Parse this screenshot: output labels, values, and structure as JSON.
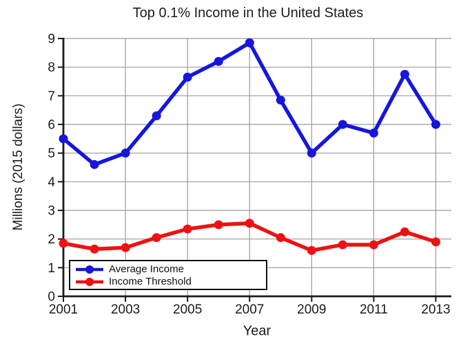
{
  "title": "Top 0.1% Income in the United States",
  "colors": {
    "average_income": "#1616dd",
    "income_threshold": "#ee1111",
    "grid": "#9a9a9a",
    "axis": "#1a1a1a",
    "background": "#ffffff"
  },
  "chart_data": {
    "type": "line",
    "title": "Top 0.1% Income in the United States",
    "xlabel": "Year",
    "ylabel": "Millions (2015 dollars)",
    "x": [
      2001,
      2002,
      2003,
      2004,
      2005,
      2006,
      2007,
      2008,
      2009,
      2010,
      2011,
      2012,
      2013
    ],
    "series": [
      {
        "name": "Average Income",
        "color": "#1616dd",
        "values": [
          5.5,
          4.6,
          5.0,
          6.3,
          7.65,
          8.2,
          8.85,
          6.85,
          5.0,
          6.0,
          5.7,
          7.75,
          6.0
        ]
      },
      {
        "name": "Income Threshold",
        "color": "#ee1111",
        "values": [
          1.85,
          1.65,
          1.7,
          2.05,
          2.35,
          2.5,
          2.55,
          2.05,
          1.6,
          1.8,
          1.8,
          2.25,
          1.9
        ]
      }
    ],
    "xlim": [
      2001,
      2013.5
    ],
    "ylim": [
      0,
      9
    ],
    "xticks": [
      2001,
      2003,
      2005,
      2007,
      2009,
      2011,
      2013
    ],
    "yticks": [
      0,
      1,
      2,
      3,
      4,
      5,
      6,
      7,
      8,
      9
    ],
    "grid": true,
    "legend_position": "lower-left"
  }
}
